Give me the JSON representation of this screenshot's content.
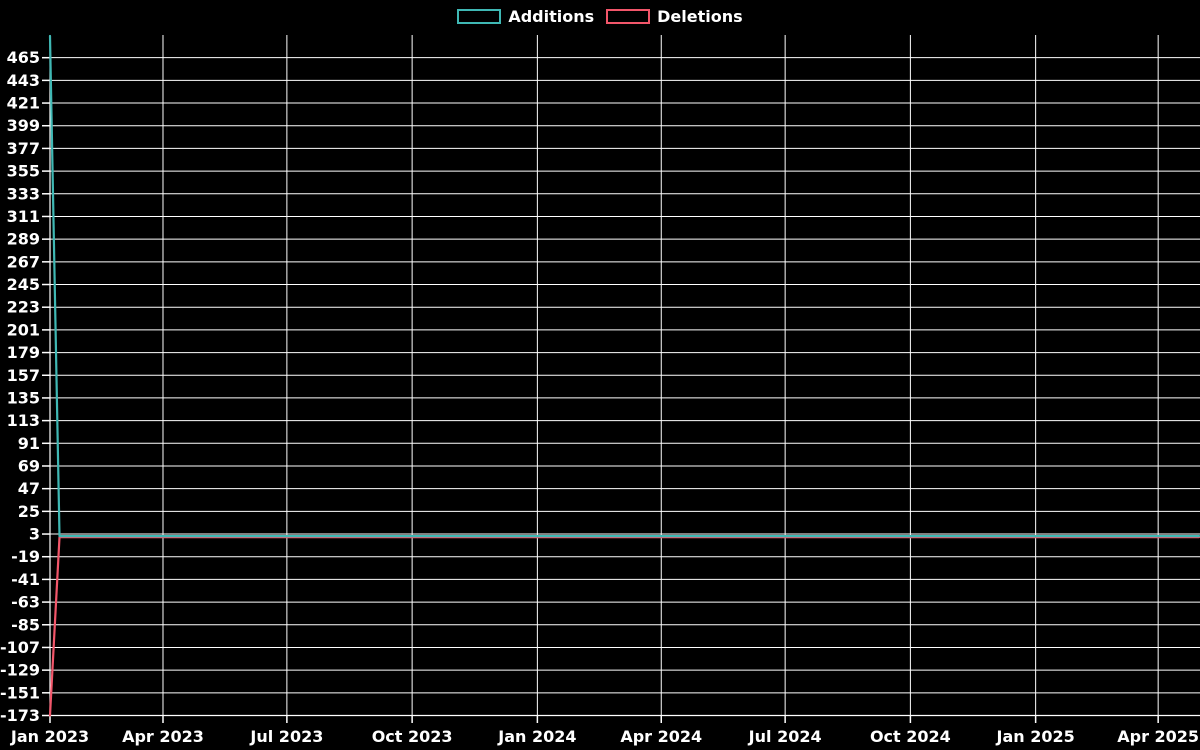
{
  "legend": {
    "items": [
      {
        "label": "Additions",
        "color": "#3FB8B4"
      },
      {
        "label": "Deletions",
        "color": "#F2566A"
      }
    ]
  },
  "chart_data": {
    "type": "line",
    "background_color": "#000000",
    "grid_color": "#FFFFFF",
    "text_color": "#FFFFFF",
    "grid": true,
    "legend_position": "top-center",
    "x_range": [
      "2023-01-08",
      "2025-05-01"
    ],
    "y_range": [
      -173,
      487
    ],
    "x_axis": {
      "ticks": [
        {
          "label": "Jan 2023",
          "date": "2023-01-08"
        },
        {
          "label": "Apr 2023",
          "date": "2023-04-01"
        },
        {
          "label": "Jul 2023",
          "date": "2023-07-01"
        },
        {
          "label": "Oct 2023",
          "date": "2023-10-01"
        },
        {
          "label": "Jan 2024",
          "date": "2024-01-01"
        },
        {
          "label": "Apr 2024",
          "date": "2024-04-01"
        },
        {
          "label": "Jul 2024",
          "date": "2024-07-01"
        },
        {
          "label": "Oct 2024",
          "date": "2024-10-01"
        },
        {
          "label": "Jan 2025",
          "date": "2025-01-01"
        },
        {
          "label": "Apr 2025",
          "date": "2025-04-01"
        }
      ]
    },
    "y_axis": {
      "tick_step": 22,
      "ticks": [
        {
          "label": "465",
          "value": 465
        },
        {
          "label": "443",
          "value": 443
        },
        {
          "label": "421",
          "value": 421
        },
        {
          "label": "399",
          "value": 399
        },
        {
          "label": "377",
          "value": 377
        },
        {
          "label": "355",
          "value": 355
        },
        {
          "label": "333",
          "value": 333
        },
        {
          "label": "311",
          "value": 311
        },
        {
          "label": "289",
          "value": 289
        },
        {
          "label": "267",
          "value": 267
        },
        {
          "label": "245",
          "value": 245
        },
        {
          "label": "223",
          "value": 223
        },
        {
          "label": "201",
          "value": 201
        },
        {
          "label": "179",
          "value": 179
        },
        {
          "label": "157",
          "value": 157
        },
        {
          "label": "135",
          "value": 135
        },
        {
          "label": "113",
          "value": 113
        },
        {
          "label": "91",
          "value": 91
        },
        {
          "label": "69",
          "value": 69
        },
        {
          "label": "47",
          "value": 47
        },
        {
          "label": "25",
          "value": 25
        },
        {
          "label": "3",
          "value": 3
        },
        {
          "label": "-19",
          "value": -19
        },
        {
          "label": "-41",
          "value": -41
        },
        {
          "label": "-63",
          "value": -63
        },
        {
          "label": "-85",
          "value": -85
        },
        {
          "label": "-107",
          "value": -107
        },
        {
          "label": "-129",
          "value": -129
        },
        {
          "label": "-151",
          "value": -151
        },
        {
          "label": "-173",
          "value": -173
        }
      ]
    },
    "series": [
      {
        "name": "Additions",
        "color": "#3FB8B4",
        "points": [
          [
            "2023-01-08",
            486
          ],
          [
            "2023-01-15",
            1
          ],
          [
            "2025-05-01",
            1
          ]
        ]
      },
      {
        "name": "Deletions",
        "color": "#F2566A",
        "points": [
          [
            "2023-01-08",
            -173
          ],
          [
            "2023-01-15",
            0
          ],
          [
            "2025-05-01",
            0
          ]
        ]
      }
    ]
  }
}
